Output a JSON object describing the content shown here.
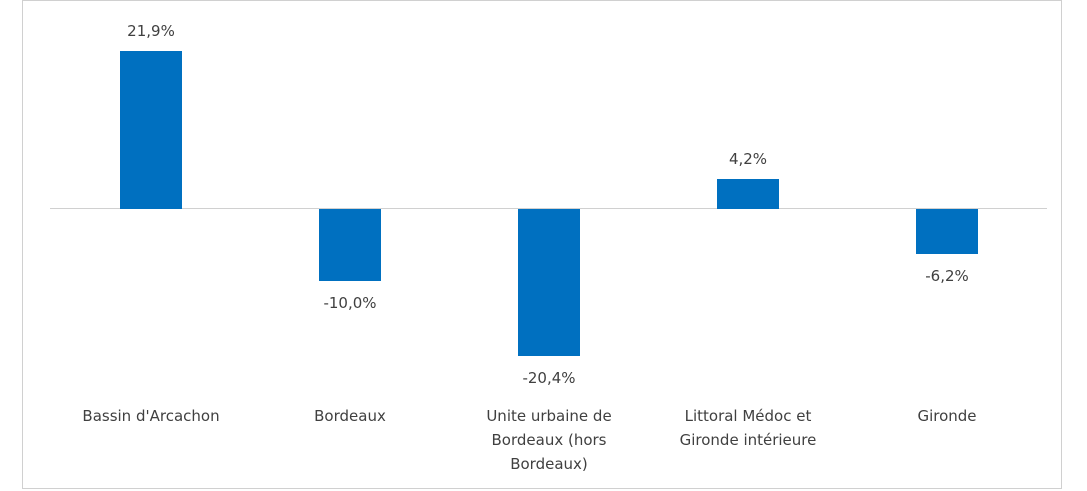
{
  "chart_data": {
    "type": "bar",
    "categories": [
      "Bassin d'Arcachon",
      "Bordeaux",
      "Unite urbaine de Bordeaux (hors Bordeaux)",
      "Littoral Médoc et Gironde intérieure",
      "Gironde"
    ],
    "values": [
      21.9,
      -10.0,
      -20.4,
      4.2,
      -6.2
    ],
    "value_labels": [
      "21,9%",
      "-10,0%",
      "-20,4%",
      "4,2%",
      "-6,2%"
    ],
    "color": "#0070c0"
  }
}
